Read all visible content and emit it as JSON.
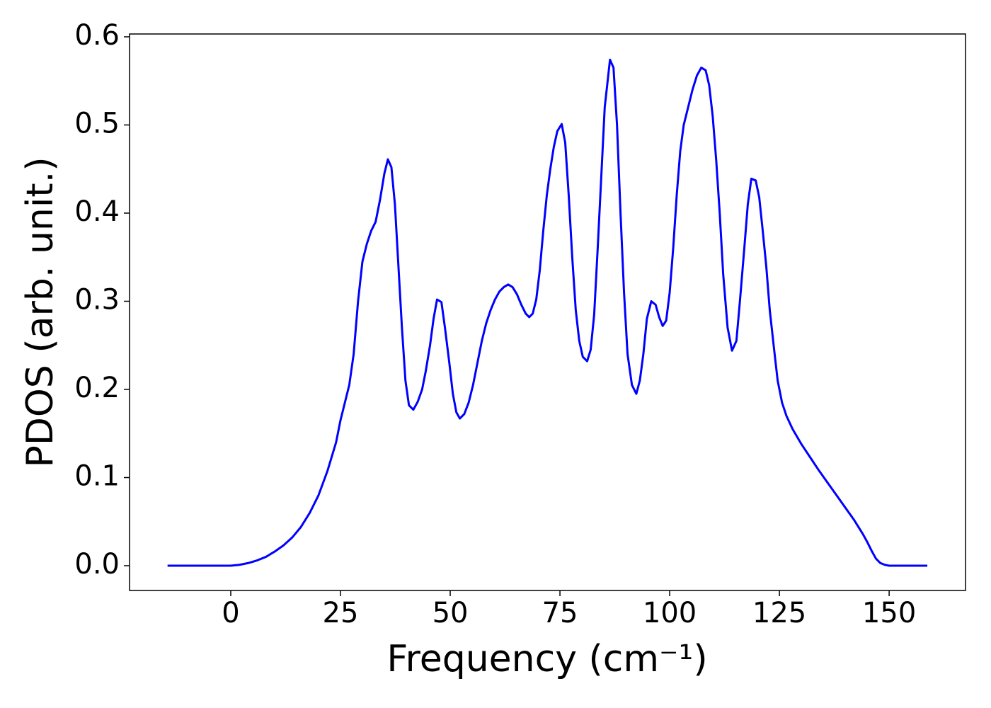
{
  "chart_data": {
    "type": "line",
    "xlabel": "Frequency (cm⁻¹)",
    "ylabel": "PDOS (arb. unit.)",
    "x": [
      -14.4,
      -5,
      0,
      2,
      4,
      6,
      8,
      10,
      12,
      14,
      16,
      18,
      20,
      22,
      24,
      25,
      26,
      27,
      28,
      29,
      30,
      31,
      32,
      33,
      34,
      35,
      35.8,
      36.6,
      37.4,
      38.2,
      39,
      39.8,
      40.6,
      41.6,
      42.6,
      43.6,
      44.4,
      45.4,
      46.2,
      47,
      48,
      48.8,
      49.8,
      50.6,
      51.4,
      52.2,
      53.2,
      54.2,
      55.2,
      56.2,
      57.2,
      58.2,
      59.2,
      60.2,
      61.2,
      62.2,
      63.2,
      64.2,
      65.2,
      66.2,
      67.2,
      68,
      68.8,
      69.6,
      70.4,
      71.2,
      72,
      72.8,
      73.6,
      74.4,
      75.4,
      76.2,
      77,
      77.8,
      78.6,
      79.4,
      80.2,
      81.2,
      82,
      82.8,
      83.6,
      84.4,
      85.2,
      86.4,
      87.2,
      88,
      88.8,
      89.6,
      90.4,
      91.4,
      92.4,
      93.2,
      94,
      94.8,
      95.8,
      96.8,
      97.6,
      98.4,
      99.2,
      100,
      100.8,
      101.6,
      102.4,
      103.2,
      104.2,
      105.2,
      106.2,
      107.2,
      108.2,
      109,
      109.8,
      110.6,
      111.4,
      112.2,
      113.2,
      114.2,
      115.2,
      116,
      117,
      117.8,
      118.6,
      119.6,
      120.4,
      121.2,
      122,
      122.8,
      123.8,
      124.6,
      125.6,
      126.6,
      128,
      130,
      132,
      134,
      136,
      138,
      140,
      142,
      144,
      145,
      146,
      147,
      148,
      149,
      150,
      158.7
    ],
    "series": [
      {
        "name": "PDOS",
        "color": "#0000ff",
        "values": [
          0,
          0,
          0,
          0.001,
          0.003,
          0.006,
          0.01,
          0.016,
          0.023,
          0.032,
          0.044,
          0.06,
          0.08,
          0.107,
          0.14,
          0.165,
          0.185,
          0.205,
          0.24,
          0.3,
          0.345,
          0.365,
          0.38,
          0.39,
          0.415,
          0.445,
          0.461,
          0.452,
          0.41,
          0.34,
          0.27,
          0.21,
          0.182,
          0.177,
          0.186,
          0.2,
          0.22,
          0.25,
          0.28,
          0.302,
          0.299,
          0.27,
          0.23,
          0.195,
          0.174,
          0.167,
          0.172,
          0.185,
          0.205,
          0.23,
          0.255,
          0.275,
          0.29,
          0.302,
          0.311,
          0.316,
          0.319,
          0.316,
          0.308,
          0.296,
          0.286,
          0.282,
          0.286,
          0.302,
          0.335,
          0.38,
          0.42,
          0.45,
          0.475,
          0.493,
          0.501,
          0.48,
          0.42,
          0.35,
          0.29,
          0.255,
          0.237,
          0.232,
          0.245,
          0.285,
          0.36,
          0.44,
          0.52,
          0.574,
          0.565,
          0.5,
          0.4,
          0.31,
          0.24,
          0.205,
          0.195,
          0.21,
          0.24,
          0.28,
          0.3,
          0.296,
          0.282,
          0.272,
          0.278,
          0.31,
          0.36,
          0.42,
          0.47,
          0.5,
          0.52,
          0.54,
          0.556,
          0.565,
          0.562,
          0.545,
          0.51,
          0.46,
          0.4,
          0.33,
          0.27,
          0.244,
          0.255,
          0.3,
          0.36,
          0.41,
          0.439,
          0.437,
          0.418,
          0.38,
          0.34,
          0.29,
          0.245,
          0.21,
          0.185,
          0.17,
          0.155,
          0.138,
          0.123,
          0.108,
          0.094,
          0.08,
          0.066,
          0.052,
          0.036,
          0.027,
          0.017,
          0.008,
          0.003,
          0.001,
          0,
          0
        ]
      }
    ],
    "xlim": [
      -23.06,
      167.4
    ],
    "ylim": [
      -0.0281,
      0.6032
    ],
    "xticks": [
      0,
      25,
      50,
      75,
      100,
      125,
      150
    ],
    "yticks": [
      {
        "value": 0,
        "label": "0.0"
      },
      {
        "value": 0.1,
        "label": "0.1"
      },
      {
        "value": 0.2,
        "label": "0.2"
      },
      {
        "value": 0.3,
        "label": "0.3"
      },
      {
        "value": 0.4,
        "label": "0.4"
      },
      {
        "value": 0.5,
        "label": "0.5"
      },
      {
        "value": 0.6,
        "label": "0.6"
      }
    ]
  }
}
